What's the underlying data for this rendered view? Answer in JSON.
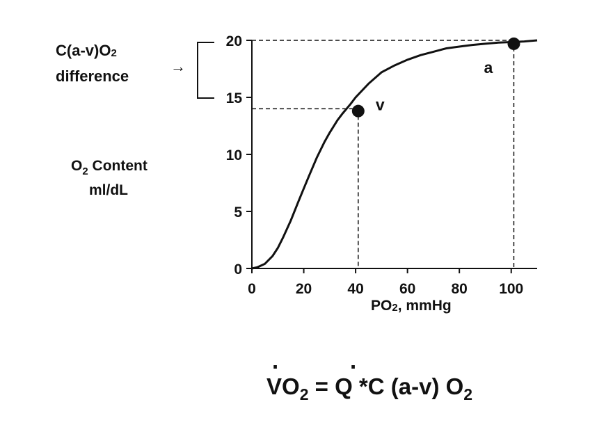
{
  "chart_data": {
    "type": "line",
    "title": "",
    "xlabel": {
      "main": "PO",
      "sub": "2",
      "rest": ", mmHg"
    },
    "ylabel": {
      "line1_main": "O",
      "line1_sub": "2",
      "line1_rest": " Content",
      "line2": "ml/dL"
    },
    "xlim": [
      0,
      110
    ],
    "ylim": [
      0,
      20
    ],
    "x_ticks": [
      0,
      20,
      40,
      60,
      80,
      100
    ],
    "y_ticks": [
      0,
      5,
      10,
      15,
      20
    ],
    "series": [
      {
        "name": "O2 dissociation curve",
        "x": [
          0,
          2,
          5,
          8,
          10,
          12,
          15,
          18,
          20,
          22,
          25,
          28,
          30,
          33,
          35,
          38,
          40,
          45,
          50,
          55,
          60,
          65,
          70,
          75,
          80,
          85,
          90,
          95,
          100,
          105,
          110
        ],
        "y": [
          0,
          0.1,
          0.4,
          1.1,
          1.8,
          2.7,
          4.2,
          5.9,
          7.0,
          8.1,
          9.7,
          11.1,
          11.9,
          13.0,
          13.6,
          14.4,
          15.0,
          16.2,
          17.2,
          17.8,
          18.3,
          18.7,
          19.0,
          19.3,
          19.45,
          19.6,
          19.7,
          19.8,
          19.85,
          19.9,
          20.0
        ]
      }
    ],
    "points": [
      {
        "label": "v",
        "x": 41,
        "y": 13.8
      },
      {
        "label": "a",
        "x": 101,
        "y": 19.7
      }
    ],
    "reference_lines": [
      {
        "from_point": "v",
        "y_value": 14
      },
      {
        "from_point": "a",
        "y_value": 20
      }
    ],
    "annotation": {
      "line1_main": "C(a-v)O",
      "line1_sub": "2",
      "line2": "difference",
      "arrow": "→"
    }
  },
  "equation": {
    "v": "V",
    "o": "O",
    "sub1": "2",
    "eq": " = ",
    "q": "Q",
    "rest": " *C (a-v) O",
    "sub2": "2",
    "dot": "."
  }
}
